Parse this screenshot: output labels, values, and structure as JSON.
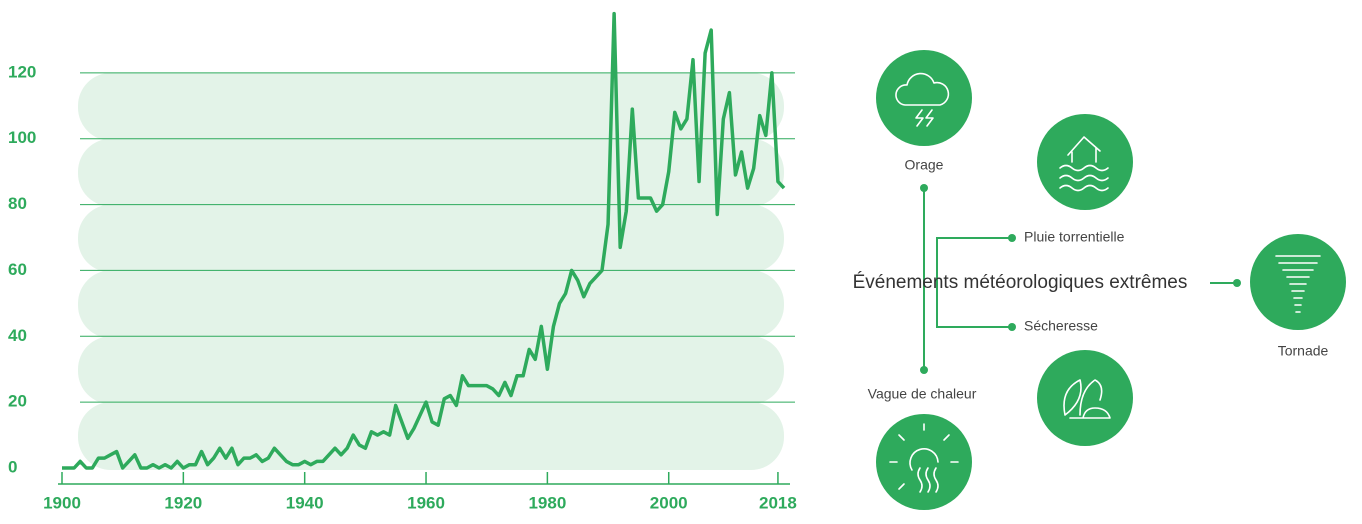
{
  "chart_data": {
    "type": "line",
    "x": [
      1900,
      1901,
      1902,
      1903,
      1904,
      1905,
      1906,
      1907,
      1908,
      1909,
      1910,
      1911,
      1912,
      1913,
      1914,
      1915,
      1916,
      1917,
      1918,
      1919,
      1920,
      1921,
      1922,
      1923,
      1924,
      1925,
      1926,
      1927,
      1928,
      1929,
      1930,
      1931,
      1932,
      1933,
      1934,
      1935,
      1936,
      1937,
      1938,
      1939,
      1940,
      1941,
      1942,
      1943,
      1944,
      1945,
      1946,
      1947,
      1948,
      1949,
      1950,
      1951,
      1952,
      1953,
      1954,
      1955,
      1956,
      1957,
      1958,
      1959,
      1960,
      1961,
      1962,
      1963,
      1964,
      1965,
      1966,
      1967,
      1968,
      1969,
      1970,
      1971,
      1972,
      1973,
      1974,
      1975,
      1976,
      1977,
      1978,
      1979,
      1980,
      1981,
      1982,
      1983,
      1984,
      1985,
      1986,
      1987,
      1988,
      1989,
      1990,
      1991,
      1992,
      1993,
      1994,
      1995,
      1996,
      1997,
      1998,
      1999,
      2000,
      2001,
      2002,
      2003,
      2004,
      2005,
      2006,
      2007,
      2008,
      2009,
      2010,
      2011,
      2012,
      2013,
      2014,
      2015,
      2016,
      2017,
      2018,
      2019
    ],
    "series": [
      {
        "color": "#2eaa5c",
        "values": [
          0,
          0,
          0,
          2,
          0,
          0,
          3,
          3,
          4,
          5,
          0,
          2,
          4,
          0,
          0,
          1,
          0,
          1,
          0,
          2,
          0,
          1,
          1,
          5,
          1,
          3,
          6,
          3,
          6,
          1,
          3,
          3,
          4,
          2,
          3,
          6,
          4,
          2,
          1,
          1,
          2,
          1,
          2,
          2,
          4,
          6,
          4,
          6,
          10,
          7,
          6,
          11,
          10,
          11,
          10,
          19,
          14,
          9,
          12,
          16,
          20,
          14,
          13,
          21,
          22,
          19,
          28,
          25,
          25,
          25,
          25,
          24,
          22,
          26,
          22,
          28,
          28,
          36,
          33,
          43,
          30,
          43,
          50,
          53,
          60,
          57,
          52,
          56,
          58,
          60,
          74,
          138,
          67,
          78,
          109,
          82,
          82,
          82,
          78,
          80,
          90,
          108,
          103,
          106,
          124,
          87,
          126,
          133,
          77,
          106,
          114,
          89,
          96,
          85,
          91,
          107,
          101,
          120,
          87,
          85
        ]
      }
    ],
    "xlim": [
      1900,
      2019
    ],
    "ylim": [
      0,
      140
    ],
    "xticks": [
      1900,
      1920,
      1940,
      1960,
      1980,
      2000,
      2018
    ],
    "yticks": [
      0,
      20,
      40,
      60,
      80,
      100,
      120
    ],
    "grid": true
  },
  "diagram": {
    "center": "Événements météorologiques extrêmes",
    "items": [
      {
        "label": "Orage"
      },
      {
        "label": "Pluie torrentielle"
      },
      {
        "label": "Tornade"
      },
      {
        "label": "Sécheresse"
      },
      {
        "label": "Vague de chaleur"
      }
    ]
  }
}
